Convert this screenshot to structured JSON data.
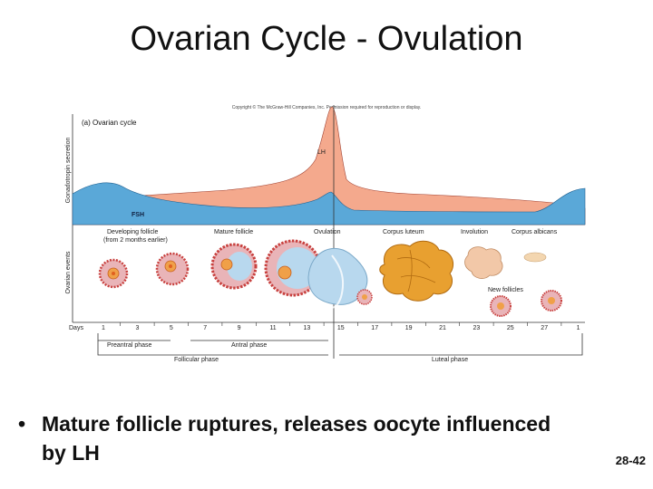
{
  "slide": {
    "title": "Ovarian Cycle - Ovulation",
    "bullet": "Mature follicle ruptures, releases oocyte influenced by LH",
    "bullet_marker": "•",
    "page_number": "28-42"
  },
  "figure": {
    "copyright": "Copyright © The McGraw-Hill Companies, Inc. Permission required for reproduction or display.",
    "panel_label": "(a) Ovarian cycle",
    "y_label_top": "Gonadotropin secretion",
    "y_label_bottom": "Ovarian events",
    "hormone_labels": {
      "lh": "LH",
      "fsh": "FSH"
    },
    "stage_labels": {
      "developing_follicle": "Developing follicle",
      "developing_follicle_note": "(from 2 months earlier)",
      "mature_follicle": "Mature follicle",
      "ovulation": "Ovulation",
      "corpus_luteum": "Corpus luteum",
      "involution": "Involution",
      "corpus_albicans": "Corpus albicans",
      "new_follicles": "New follicles"
    },
    "days_label": "Days",
    "days": [
      "1",
      "3",
      "5",
      "7",
      "9",
      "11",
      "13",
      "15",
      "17",
      "19",
      "21",
      "23",
      "25",
      "27",
      "1"
    ],
    "phases": {
      "preantral": "Preantral phase",
      "antral": "Antral phase",
      "follicular": "Follicular phase",
      "luteal": "Luteal phase"
    },
    "colors": {
      "lh_fill": "#f4a98d",
      "fsh_fill": "#5aa8d8",
      "follicle_red": "#c8413f",
      "follicle_pink": "#e9b4b8",
      "oocyte_orange": "#f0a048",
      "corpus_luteum": "#e8a030",
      "antrum_blue": "#b8d8ee"
    }
  }
}
